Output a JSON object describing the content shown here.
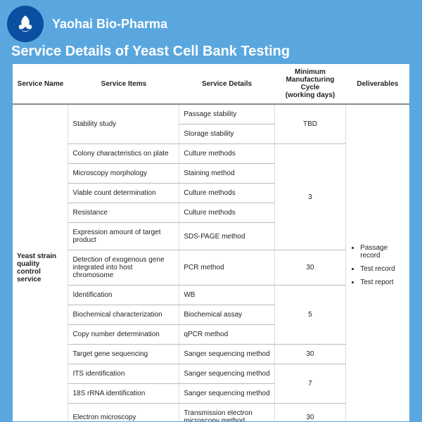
{
  "company": "Yaohai Bio-Pharma",
  "title": "Service Details of Yeast Cell Bank Testing",
  "headers": {
    "c1": "Service Name",
    "c2": "Service Items",
    "c3": "Service Details",
    "c4": "Minimum Manufacturing Cycle",
    "c4sub": "(working days)",
    "c5": "Deliverables"
  },
  "serviceName": "Yeast strain quality control service",
  "rows": [
    {
      "item": "Stability study",
      "detail": "Passage stability",
      "cycle": "TBD",
      "itemRowspan": 2,
      "cycleRowspan": 2
    },
    {
      "item": "",
      "detail": "Storage stability",
      "cycle": ""
    },
    {
      "item": "Colony characteristics on plate",
      "detail": "Culture methods",
      "cycle": "",
      "cycleStart": false
    },
    {
      "item": "Microscopy morphology",
      "detail": "Staining method",
      "cycle": ""
    },
    {
      "item": "Viable count determination",
      "detail": "Culture methods",
      "cycle": "3",
      "cycleRowspan": 1
    },
    {
      "item": "Resistance",
      "detail": "Culture methods",
      "cycle": ""
    },
    {
      "item": "Expression amount of target product",
      "detail": "SDS-PAGE method",
      "cycle": ""
    },
    {
      "item": "Detection of exogenous gene integrated into host chromosome",
      "detail": "PCR method",
      "cycle": "30"
    },
    {
      "item": "Identification",
      "detail": "WB",
      "cycle": ""
    },
    {
      "item": "Biochemical characterization",
      "detail": "Biochemical assay",
      "cycle": "5"
    },
    {
      "item": "Copy number determination",
      "detail": "qPCR method",
      "cycle": ""
    },
    {
      "item": "Target gene sequencing",
      "detail": "Sanger sequencing method",
      "cycle": "30"
    },
    {
      "item": "ITS identification",
      "detail": "Sanger sequencing method",
      "cycle": ""
    },
    {
      "item": "18S rRNA identification",
      "detail": "Sanger sequencing method",
      "cycle": "7"
    },
    {
      "item": "Electron microscopy",
      "detail": "Transmission electron microscopy method",
      "cycle": "30"
    }
  ],
  "deliverables": [
    "Passage record",
    "Test record",
    "Test report"
  ],
  "colors": {
    "bg": "#5aa7e0",
    "logoBg": "#0a4fa0",
    "text": "#222222",
    "border": "#bbbbbb"
  }
}
